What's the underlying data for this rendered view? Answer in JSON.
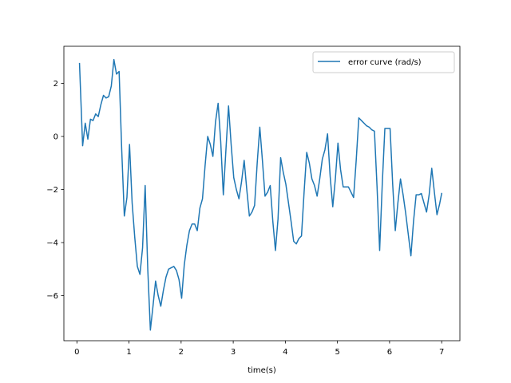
{
  "chart_data": {
    "type": "line",
    "title": "",
    "xlabel": "time(s)",
    "ylabel": "",
    "xlim": [
      -0.25,
      7.35
    ],
    "ylim": [
      -7.7,
      3.4
    ],
    "xticks": [
      0,
      1,
      2,
      3,
      4,
      5,
      6,
      7
    ],
    "yticks": [
      -6,
      -4,
      -2,
      0,
      2
    ],
    "ytick_labels": [
      "−6",
      "−4",
      "−2",
      "0",
      "2"
    ],
    "grid": false,
    "legend_position": "top-right",
    "series": [
      {
        "name": "error curve (rad/s)",
        "color": "#1f77b4",
        "x": [
          0.05,
          0.11,
          0.16,
          0.21,
          0.26,
          0.31,
          0.36,
          0.41,
          0.46,
          0.51,
          0.56,
          0.61,
          0.66,
          0.71,
          0.76,
          0.81,
          0.86,
          0.91,
          0.96,
          1.01,
          1.06,
          1.11,
          1.16,
          1.21,
          1.26,
          1.31,
          1.36,
          1.41,
          1.46,
          1.51,
          1.56,
          1.61,
          1.66,
          1.71,
          1.76,
          1.81,
          1.86,
          1.91,
          1.96,
          2.01,
          2.06,
          2.11,
          2.16,
          2.21,
          2.26,
          2.31,
          2.36,
          2.41,
          2.46,
          2.51,
          2.56,
          2.61,
          2.66,
          2.71,
          2.76,
          2.81,
          2.86,
          2.91,
          2.96,
          3.01,
          3.06,
          3.11,
          3.16,
          3.21,
          3.26,
          3.31,
          3.36,
          3.41,
          3.46,
          3.51,
          3.56,
          3.61,
          3.66,
          3.71,
          3.76,
          3.81,
          3.86,
          3.91,
          3.96,
          4.01,
          4.06,
          4.11,
          4.16,
          4.21,
          4.26,
          4.31,
          4.36,
          4.41,
          4.46,
          4.51,
          4.56,
          4.61,
          4.66,
          4.71,
          4.76,
          4.81,
          4.86,
          4.91,
          4.96,
          5.01,
          5.06,
          5.11,
          5.16,
          5.21,
          5.26,
          5.31,
          5.36,
          5.41,
          5.46,
          5.51,
          5.56,
          5.61,
          5.66,
          5.71,
          5.76,
          5.81,
          5.86,
          5.91,
          5.96,
          6.01,
          6.06,
          6.11,
          6.16,
          6.21,
          6.26,
          6.31,
          6.36,
          6.41,
          6.46,
          6.51,
          6.56,
          6.61,
          6.66,
          6.71,
          6.76,
          6.81,
          6.86,
          6.91,
          6.96,
          7.0
        ],
        "y": [
          2.75,
          -0.35,
          0.5,
          -0.1,
          0.65,
          0.6,
          0.85,
          0.75,
          1.2,
          1.55,
          1.45,
          1.5,
          1.9,
          2.9,
          2.35,
          2.45,
          -0.5,
          -3.0,
          -2.3,
          -0.3,
          -2.5,
          -3.8,
          -4.9,
          -5.2,
          -4.2,
          -1.85,
          -5.0,
          -7.3,
          -6.4,
          -5.45,
          -6.0,
          -6.4,
          -5.8,
          -5.3,
          -5.0,
          -4.95,
          -4.9,
          -5.05,
          -5.4,
          -6.1,
          -4.85,
          -4.1,
          -3.55,
          -3.3,
          -3.3,
          -3.55,
          -2.7,
          -2.35,
          -1.1,
          0.0,
          -0.3,
          -0.75,
          0.55,
          1.25,
          -0.2,
          -2.2,
          -0.5,
          1.15,
          -0.3,
          -1.55,
          -2.0,
          -2.35,
          -1.7,
          -0.9,
          -2.0,
          -3.0,
          -2.85,
          -2.6,
          -1.0,
          0.35,
          -0.9,
          -2.25,
          -2.1,
          -1.85,
          -3.2,
          -4.3,
          -3.1,
          -0.8,
          -1.35,
          -1.8,
          -2.5,
          -3.2,
          -3.95,
          -4.05,
          -3.85,
          -3.75,
          -2.1,
          -0.6,
          -1.0,
          -1.6,
          -1.85,
          -2.25,
          -1.6,
          -0.85,
          -0.5,
          0.1,
          -1.5,
          -2.65,
          -1.6,
          -0.25,
          -1.25,
          -1.9,
          -1.9,
          -1.9,
          -2.1,
          -2.3,
          -0.9,
          0.7,
          0.6,
          0.5,
          0.4,
          0.35,
          0.25,
          0.2,
          -1.9,
          -4.3,
          -1.8,
          0.3,
          0.3,
          0.3,
          -1.8,
          -3.55,
          -2.5,
          -1.6,
          -2.2,
          -2.9,
          -3.7,
          -4.5,
          -3.2,
          -2.2,
          -2.2,
          -2.15,
          -2.5,
          -2.85,
          -2.2,
          -1.2,
          -2.1,
          -2.95,
          -2.55,
          -2.15
        ]
      }
    ]
  }
}
